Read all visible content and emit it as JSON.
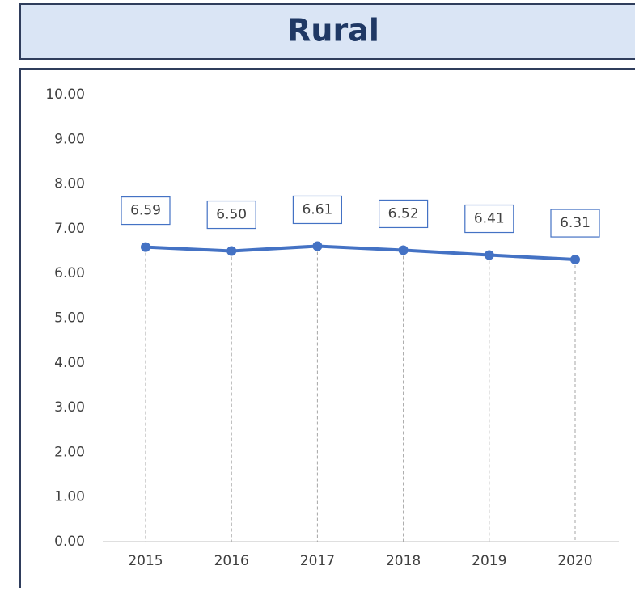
{
  "chart_data": {
    "type": "line",
    "title": "Rural",
    "categories": [
      "2015",
      "2016",
      "2017",
      "2018",
      "2019",
      "2020"
    ],
    "series": [
      {
        "name": "Rural",
        "color": "#4472c4",
        "values": [
          6.59,
          6.5,
          6.61,
          6.52,
          6.41,
          6.31
        ],
        "value_labels": [
          "6.59",
          "6.50",
          "6.61",
          "6.52",
          "6.41",
          "6.31"
        ]
      }
    ],
    "ylim": [
      0,
      10
    ],
    "yticks": [
      {
        "value": 0,
        "label": "0.00"
      },
      {
        "value": 1,
        "label": "1.00"
      },
      {
        "value": 2,
        "label": "2.00"
      },
      {
        "value": 3,
        "label": "3.00"
      },
      {
        "value": 4,
        "label": "4.00"
      },
      {
        "value": 5,
        "label": "5.00"
      },
      {
        "value": 6,
        "label": "6.00"
      },
      {
        "value": 7,
        "label": "7.00"
      },
      {
        "value": 8,
        "label": "8.00"
      },
      {
        "value": 9,
        "label": "9.00"
      },
      {
        "value": 10,
        "label": "10.00"
      }
    ],
    "grid": false
  }
}
